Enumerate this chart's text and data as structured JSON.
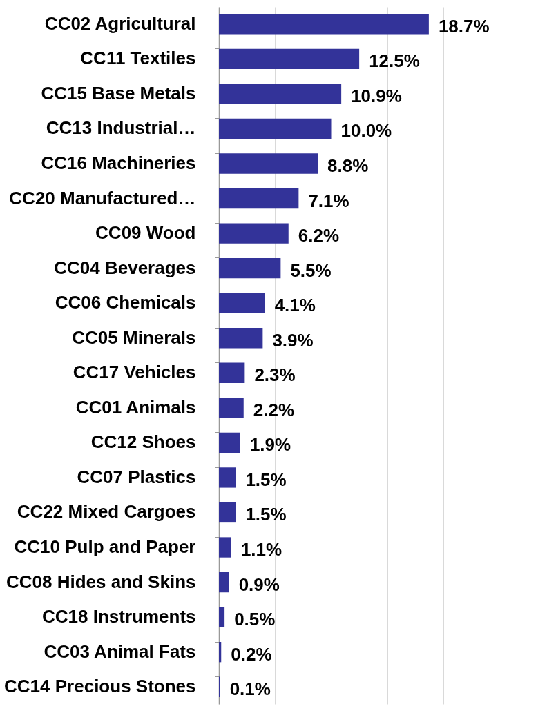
{
  "chart_data": {
    "type": "bar",
    "orientation": "horizontal",
    "categories": [
      "CC02 Agricultural",
      "CC11 Textiles",
      "CC15 Base Metals",
      "CC13 Industrial…",
      "CC16 Machineries",
      "CC20 Manufactured…",
      "CC09 Wood",
      "CC04 Beverages",
      "CC06 Chemicals",
      "CC05 Minerals",
      "CC17 Vehicles",
      "CC01 Animals",
      "CC12 Shoes",
      "CC07 Plastics",
      "CC22 Mixed Cargoes",
      "CC10 Pulp and Paper",
      "CC08 Hides and Skins",
      "CC18 Instruments",
      "CC03 Animal Fats",
      "CC14 Precious Stones"
    ],
    "values": [
      18.7,
      12.5,
      10.9,
      10.0,
      8.8,
      7.1,
      6.2,
      5.5,
      4.1,
      3.9,
      2.3,
      2.2,
      1.9,
      1.5,
      1.5,
      1.1,
      0.9,
      0.5,
      0.2,
      0.1
    ],
    "value_labels": [
      "18.7%",
      "12.5%",
      "10.9%",
      "10.0%",
      "8.8%",
      "7.1%",
      "6.2%",
      "5.5%",
      "4.1%",
      "3.9%",
      "2.3%",
      "2.2%",
      "1.9%",
      "1.5%",
      "1.5%",
      "1.1%",
      "0.9%",
      "0.5%",
      "0.2%",
      "0.1%"
    ],
    "color": "#333399",
    "xlim": [
      0,
      20
    ],
    "xticks": [
      {
        "value": 0,
        "label": null
      },
      {
        "value": 5,
        "label": null
      },
      {
        "value": 10,
        "label": null
      },
      {
        "value": 15,
        "label": null
      },
      {
        "value": 20,
        "label": null
      }
    ],
    "grid": "x",
    "tick_labels": "y"
  }
}
